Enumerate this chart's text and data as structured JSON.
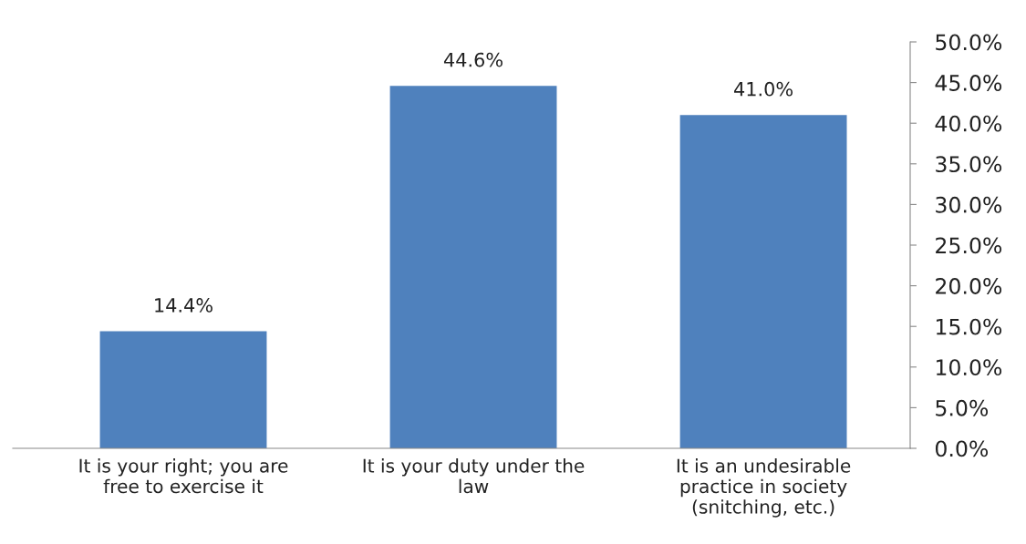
{
  "chart_data": {
    "type": "bar",
    "categories": [
      "It is your right; you are\nfree to exercise it",
      "It is your duty under the\nlaw",
      "It is an undesirable\npractice in society\n(snitching, etc.)"
    ],
    "values": [
      14.4,
      44.6,
      41.0
    ],
    "color": "#4f81bd",
    "value_labels": [
      "14.4%",
      "44.6%",
      "41.0%"
    ],
    "ylim": [
      0,
      50
    ],
    "yticks": [
      {
        "value": 0,
        "label": "0.0%"
      },
      {
        "value": 5,
        "label": "5.0%"
      },
      {
        "value": 10,
        "label": "10.0%"
      },
      {
        "value": 15,
        "label": "15.0%"
      },
      {
        "value": 20,
        "label": "20.0%"
      },
      {
        "value": 25,
        "label": "25.0%"
      },
      {
        "value": 30,
        "label": "30.0%"
      },
      {
        "value": 35,
        "label": "35.0%"
      },
      {
        "value": 40,
        "label": "40.0%"
      },
      {
        "value": 45,
        "label": "45.0%"
      },
      {
        "value": 50,
        "label": "50.0%"
      }
    ],
    "grid": false,
    "legend": false
  }
}
